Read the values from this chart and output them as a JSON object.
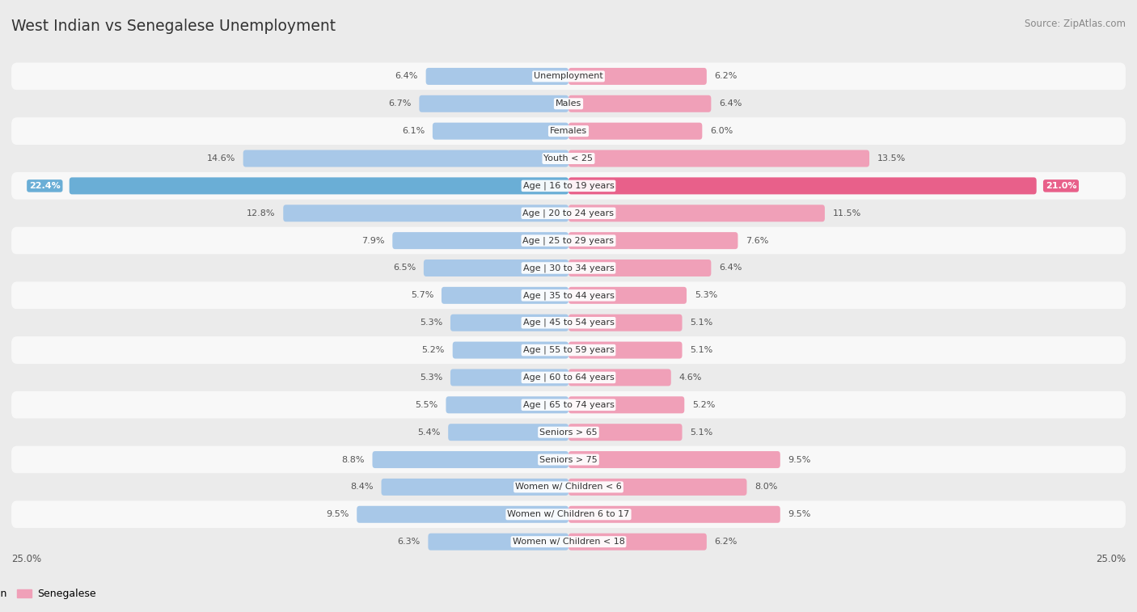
{
  "title": "West Indian vs Senegalese Unemployment",
  "source": "Source: ZipAtlas.com",
  "categories": [
    "Unemployment",
    "Males",
    "Females",
    "Youth < 25",
    "Age | 16 to 19 years",
    "Age | 20 to 24 years",
    "Age | 25 to 29 years",
    "Age | 30 to 34 years",
    "Age | 35 to 44 years",
    "Age | 45 to 54 years",
    "Age | 55 to 59 years",
    "Age | 60 to 64 years",
    "Age | 65 to 74 years",
    "Seniors > 65",
    "Seniors > 75",
    "Women w/ Children < 6",
    "Women w/ Children 6 to 17",
    "Women w/ Children < 18"
  ],
  "west_indian": [
    6.4,
    6.7,
    6.1,
    14.6,
    22.4,
    12.8,
    7.9,
    6.5,
    5.7,
    5.3,
    5.2,
    5.3,
    5.5,
    5.4,
    8.8,
    8.4,
    9.5,
    6.3
  ],
  "senegalese": [
    6.2,
    6.4,
    6.0,
    13.5,
    21.0,
    11.5,
    7.6,
    6.4,
    5.3,
    5.1,
    5.1,
    4.6,
    5.2,
    5.1,
    9.5,
    8.0,
    9.5,
    6.2
  ],
  "max_val": 25.0,
  "blue_color": "#a8c8e8",
  "pink_color": "#f0a0b8",
  "blue_highlight": "#6aaed6",
  "pink_highlight": "#e8608a",
  "bg_color": "#ebebeb",
  "row_bg_even": "#f8f8f8",
  "row_bg_odd": "#ebebeb",
  "title_color": "#333333",
  "value_fontsize": 8.0,
  "label_fontsize": 8.0,
  "title_fontsize": 13.5
}
